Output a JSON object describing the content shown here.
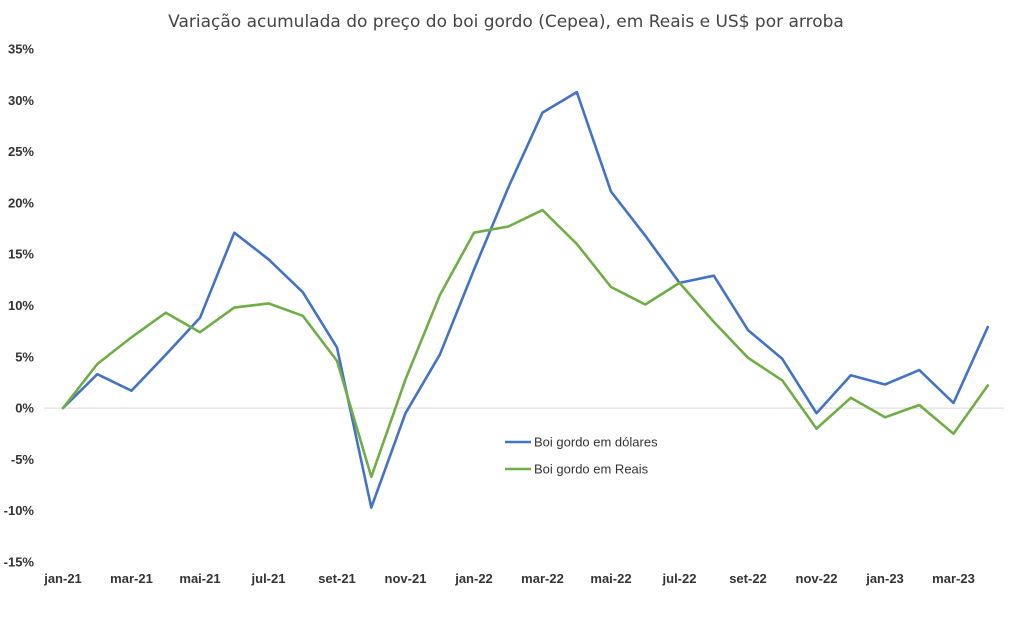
{
  "chart_data": {
    "type": "line",
    "title": "Variação acumulada do preço do boi gordo (Cepea), em Reais e US$ por arroba",
    "xlabel": "",
    "ylabel": "",
    "ylim": [
      -15,
      35
    ],
    "y_ticks": [
      35,
      30,
      25,
      20,
      15,
      10,
      5,
      0,
      -5,
      -10,
      -15
    ],
    "y_tick_labels": [
      "35%",
      "30%",
      "25%",
      "20%",
      "15%",
      "10%",
      "5%",
      "0%",
      "-5%",
      "-10%",
      "-15%"
    ],
    "categories": [
      "jan-21",
      "fev-21",
      "mar-21",
      "abr-21",
      "mai-21",
      "jun-21",
      "jul-21",
      "ago-21",
      "set-21",
      "out-21",
      "nov-21",
      "dez-21",
      "jan-22",
      "fev-22",
      "mar-22",
      "abr-22",
      "mai-22",
      "jun-22",
      "jul-22",
      "ago-22",
      "set-22",
      "out-22",
      "nov-22",
      "dez-22",
      "jan-23",
      "fev-23",
      "mar-23",
      "abr-23"
    ],
    "x_tick_labels": [
      "jan-21",
      "mar-21",
      "mai-21",
      "jul-21",
      "set-21",
      "nov-21",
      "jan-22",
      "mar-22",
      "mai-22",
      "jul-22",
      "set-22",
      "nov-22",
      "jan-23",
      "mar-23"
    ],
    "x_tick_indices": [
      0,
      2,
      4,
      6,
      8,
      10,
      12,
      14,
      16,
      18,
      20,
      22,
      24,
      26
    ],
    "grid": false,
    "zero_line": true,
    "legend_position": "center",
    "series": [
      {
        "name": "Boi gordo em dólares",
        "color": "#4472c4",
        "values": [
          0,
          3.3,
          1.7,
          5.2,
          8.8,
          17.1,
          14.5,
          11.3,
          5.9,
          -9.7,
          -0.5,
          5.2,
          13.5,
          21.5,
          28.8,
          30.8,
          21.1,
          16.8,
          12.2,
          12.9,
          7.6,
          4.8,
          -0.5,
          3.2,
          2.3,
          3.7,
          0.5,
          7.9
        ]
      },
      {
        "name": "Boi gordo em Reais",
        "color": "#70ad47",
        "values": [
          0,
          4.3,
          6.9,
          9.3,
          7.4,
          9.8,
          10.2,
          9.0,
          4.6,
          -6.7,
          2.8,
          11.0,
          17.1,
          17.7,
          19.3,
          16.0,
          11.8,
          10.1,
          12.2,
          8.4,
          4.9,
          2.7,
          -2.0,
          1.0,
          -0.9,
          0.3,
          -2.5,
          2.2
        ]
      }
    ]
  }
}
